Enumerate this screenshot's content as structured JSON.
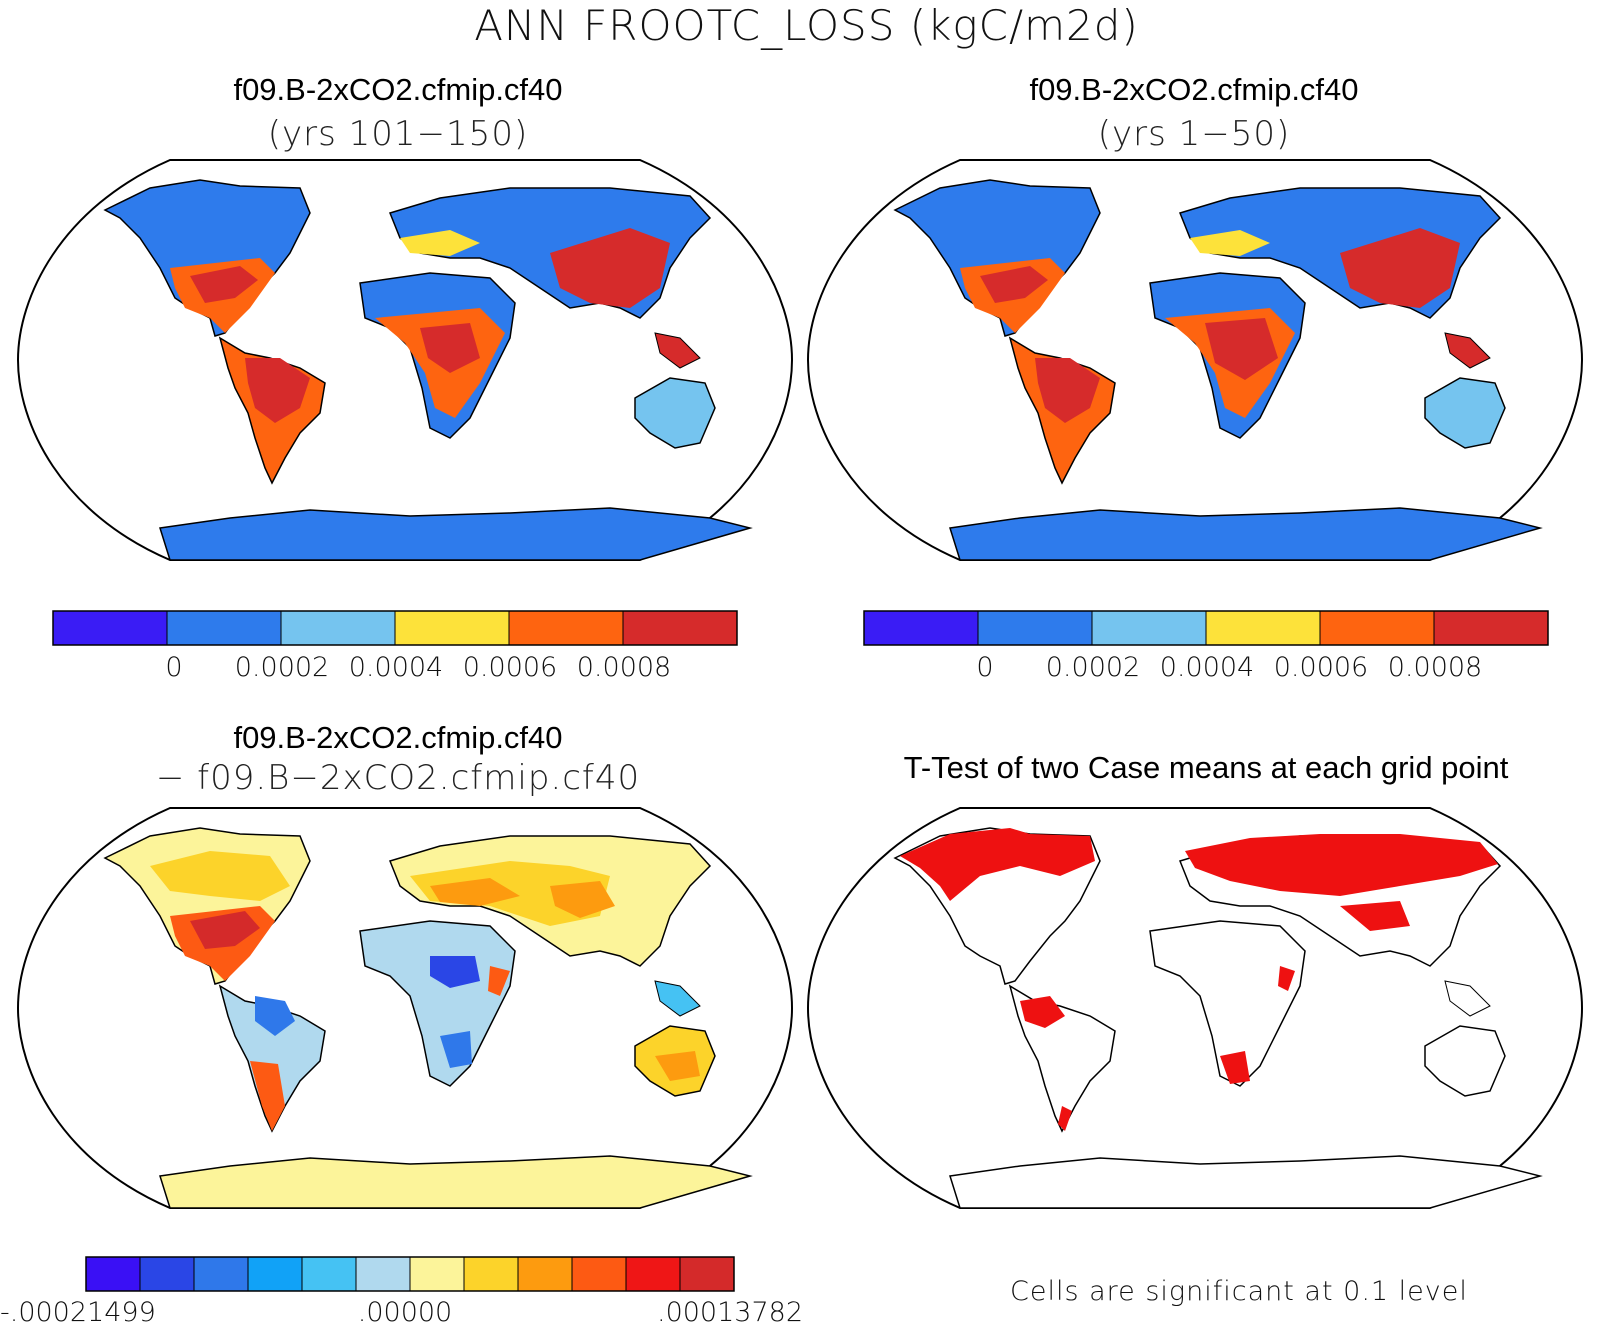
{
  "figure": {
    "title": "ANN FROOTC_LOSS (kgC/m2d)"
  },
  "panels": [
    {
      "title": "f09.B-2xCO2.cfmip.cf40",
      "subtitle": "(yrs 101−150)",
      "colorbar": {
        "colors": [
          "#3a1cf5",
          "#2e7bec",
          "#75c4ef",
          "#fde23a",
          "#fe6410",
          "#d62b2b"
        ],
        "labels": [
          "0",
          "0.0002",
          "0.0004",
          "0.0006",
          "0.0008"
        ]
      }
    },
    {
      "title": "f09.B-2xCO2.cfmip.cf40",
      "subtitle": "(yrs 1−50)",
      "colorbar": {
        "colors": [
          "#3a1cf5",
          "#2e7bec",
          "#75c4ef",
          "#fde23a",
          "#fe6410",
          "#d62b2b"
        ],
        "labels": [
          "0",
          "0.0002",
          "0.0004",
          "0.0006",
          "0.0008"
        ]
      }
    },
    {
      "title": "f09.B-2xCO2.cfmip.cf40",
      "subtitle": "− f09.B−2xCO2.cfmip.cf40",
      "colorbar": {
        "colors": [
          "#3a10f5",
          "#2a46e6",
          "#2f78ea",
          "#11a2f7",
          "#45c2f3",
          "#b0d9ee",
          "#fcf49a",
          "#fcd32a",
          "#fd9b0f",
          "#fd5a13",
          "#ef1616",
          "#d42a2a"
        ],
        "labels": [
          "-.00021499",
          ".00000",
          ".00013782"
        ]
      }
    },
    {
      "title": "T-Test of two Case means at each grid point",
      "note": "Cells are significant at 0.1 level",
      "significance_color": "#ee1111"
    }
  ]
}
